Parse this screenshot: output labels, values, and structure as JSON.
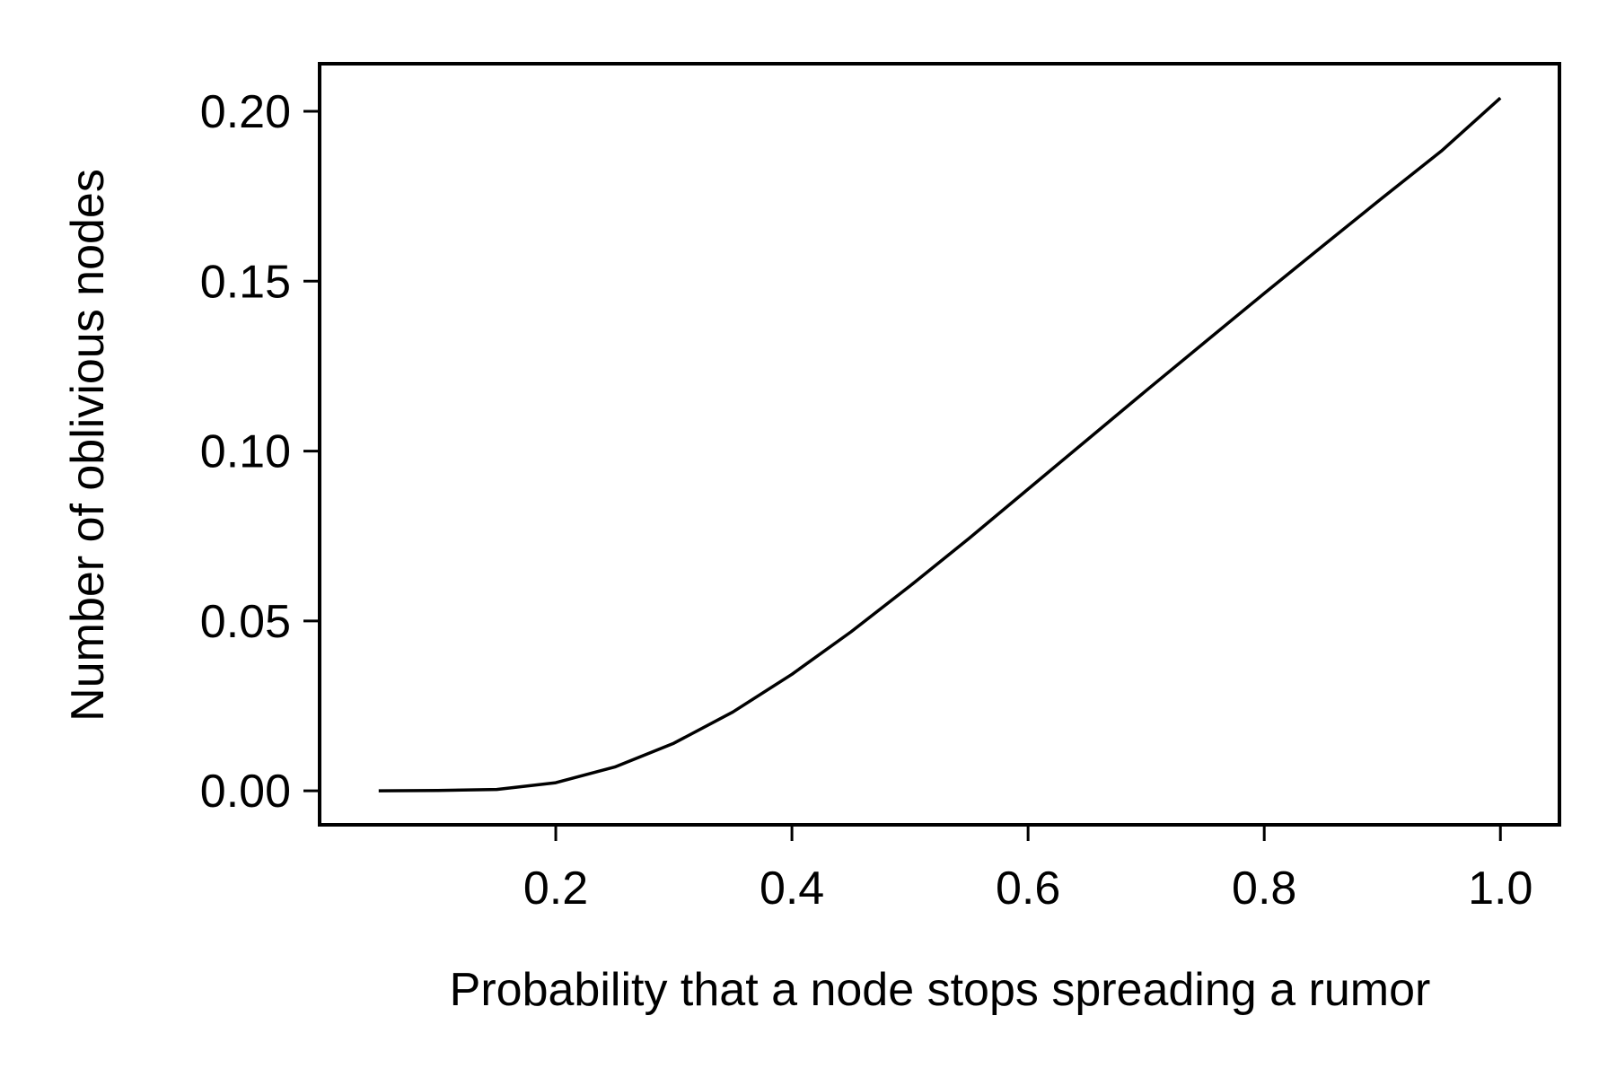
{
  "chart_data": {
    "type": "line",
    "title": "",
    "xlabel": "Probability that a node stops spreading a rumor",
    "ylabel": "Number of oblivious nodes",
    "xlim": [
      0.0,
      1.05
    ],
    "ylim": [
      -0.01,
      0.214
    ],
    "xticks": [
      0.2,
      0.4,
      0.6,
      0.8,
      1.0
    ],
    "xtick_labels": [
      "0.2",
      "0.4",
      "0.6",
      "0.8",
      "1.0"
    ],
    "yticks": [
      0.0,
      0.05,
      0.1,
      0.15,
      0.2
    ],
    "ytick_labels": [
      "0.00",
      "0.05",
      "0.10",
      "0.15",
      "0.20"
    ],
    "grid": false,
    "series": [
      {
        "color": "#000000",
        "x": [
          0.05,
          0.1,
          0.15,
          0.2,
          0.25,
          0.3,
          0.35,
          0.4,
          0.45,
          0.5,
          0.55,
          0.6,
          0.65,
          0.7,
          0.75,
          0.8,
          0.85,
          0.9,
          0.95,
          1.0
        ],
        "y": [
          0.0,
          0.0001,
          0.0004,
          0.0024,
          0.007,
          0.014,
          0.0232,
          0.0343,
          0.0468,
          0.0603,
          0.0743,
          0.0888,
          0.1033,
          0.1178,
          0.1321,
          0.1464,
          0.1605,
          0.1745,
          0.1883,
          0.2039
        ]
      }
    ]
  }
}
